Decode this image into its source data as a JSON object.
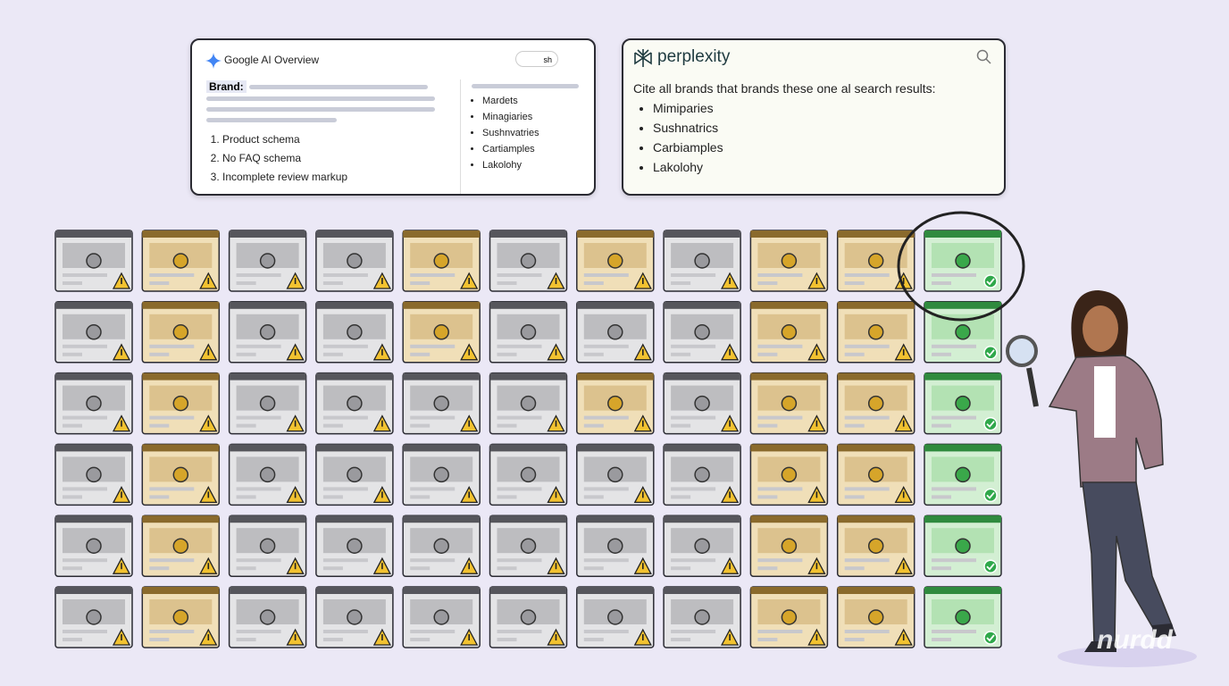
{
  "google_panel": {
    "title": "Google AI Overview",
    "account": "sh",
    "brand_label": "Brand:",
    "issues": [
      "Product schema",
      "No FAQ schema",
      "Incomplete review markup"
    ],
    "side_list": [
      "Mardets",
      "Minagiaries",
      "Sushnvatries",
      "Cartiamples",
      "Lakolohy"
    ]
  },
  "perplexity_panel": {
    "title": "perplexity",
    "prompt": "Cite all brands that brands these one al search results:",
    "results": [
      "Mimiparies",
      "Sushnatrics",
      "Carbiamples",
      "Lakolohy"
    ]
  },
  "watermark": "nurdd"
}
